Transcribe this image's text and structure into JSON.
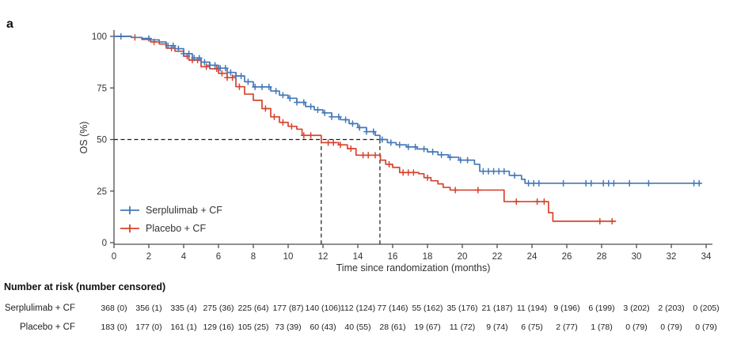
{
  "panel_label": "a",
  "colors": {
    "serplulimab": "#4478b8",
    "placebo": "#d7432e",
    "axis": "#4d4d4d",
    "dashed": "#1a1a1a",
    "text": "#333333"
  },
  "chart_data": {
    "type": "line",
    "subtype": "kaplan-meier-step",
    "title": "",
    "xlabel": "Time since randomization (months)",
    "ylabel": "OS (%)",
    "xlim": [
      0,
      35
    ],
    "ylim": [
      0,
      100
    ],
    "xticks": [
      0,
      2,
      4,
      6,
      8,
      10,
      12,
      14,
      16,
      18,
      20,
      22,
      24,
      26,
      28,
      30,
      32,
      34
    ],
    "yticks": [
      0,
      25,
      50,
      75,
      100
    ],
    "grid": false,
    "legend_position": "inside-lower-left",
    "median_markers": {
      "horizontal_y": 50,
      "vertical_x": [
        11.9,
        15.27
      ]
    },
    "series": [
      {
        "name": "Serplulimab + CF",
        "color": "#4478b8",
        "steps": [
          [
            0,
            100
          ],
          [
            1,
            99.5
          ],
          [
            1.6,
            99
          ],
          [
            2.1,
            98.3
          ],
          [
            2.6,
            97.3
          ],
          [
            3,
            95.5
          ],
          [
            3.5,
            94
          ],
          [
            4,
            91.6
          ],
          [
            4.5,
            89.5
          ],
          [
            5,
            87.5
          ],
          [
            5.5,
            86
          ],
          [
            6,
            84.6
          ],
          [
            6.5,
            82.5
          ],
          [
            7,
            80.8
          ],
          [
            7.5,
            78
          ],
          [
            8,
            75.5
          ],
          [
            9,
            73.5
          ],
          [
            9.5,
            71.5
          ],
          [
            10,
            70
          ],
          [
            10.5,
            68
          ],
          [
            11,
            66
          ],
          [
            11.5,
            64.4
          ],
          [
            12,
            62.9
          ],
          [
            12.5,
            61
          ],
          [
            13,
            59.6
          ],
          [
            13.5,
            57.7
          ],
          [
            14,
            55.8
          ],
          [
            14.5,
            53.8
          ],
          [
            15,
            52
          ],
          [
            15.27,
            50
          ],
          [
            15.7,
            48.5
          ],
          [
            16.2,
            47.4
          ],
          [
            16.8,
            46.4
          ],
          [
            17.4,
            45.4
          ],
          [
            18,
            44
          ],
          [
            18.6,
            42.6
          ],
          [
            19.2,
            41.4
          ],
          [
            19.8,
            40
          ],
          [
            20.7,
            38
          ],
          [
            21,
            34.6
          ],
          [
            22.7,
            32.6
          ],
          [
            23.4,
            30.7
          ],
          [
            23.6,
            28.8
          ],
          [
            33.7,
            28.8
          ]
        ],
        "censors": [
          0.4,
          2.0,
          3.1,
          3.4,
          3.7,
          4.0,
          4.3,
          4.6,
          4.9,
          5.2,
          5.5,
          5.8,
          6.1,
          6.4,
          6.7,
          7.0,
          7.3,
          7.7,
          8.1,
          8.5,
          8.9,
          9.3,
          9.7,
          10.1,
          10.5,
          10.9,
          11.3,
          11.7,
          12.1,
          12.5,
          12.9,
          13.3,
          13.7,
          14.1,
          14.5,
          14.9,
          15.4,
          15.9,
          16.4,
          16.9,
          17.3,
          17.8,
          18.3,
          18.8,
          19.3,
          19.9,
          20.3,
          21.2,
          21.5,
          21.8,
          22.1,
          22.4,
          23.0,
          23.8,
          24.1,
          24.4,
          25.8,
          27.1,
          27.4,
          28.1,
          28.4,
          28.7,
          29.6,
          30.7,
          33.3,
          33.6
        ]
      },
      {
        "name": "Placebo + CF",
        "color": "#d7432e",
        "steps": [
          [
            0,
            100
          ],
          [
            1,
            99.5
          ],
          [
            1.6,
            98.5
          ],
          [
            2.1,
            97.3
          ],
          [
            2.6,
            96.3
          ],
          [
            3,
            94.3
          ],
          [
            3.5,
            92.8
          ],
          [
            4,
            90.4
          ],
          [
            4.3,
            88.5
          ],
          [
            5,
            85.3
          ],
          [
            5.5,
            84.3
          ],
          [
            6,
            82.1
          ],
          [
            6.5,
            80
          ],
          [
            7,
            75.6
          ],
          [
            7.5,
            72
          ],
          [
            8,
            69
          ],
          [
            8.5,
            65
          ],
          [
            9,
            61
          ],
          [
            9.5,
            58.3
          ],
          [
            10,
            56.4
          ],
          [
            10.5,
            55
          ],
          [
            10.8,
            52
          ],
          [
            11.9,
            48.5
          ],
          [
            12.9,
            47.4
          ],
          [
            13.4,
            45.6
          ],
          [
            13.9,
            42.4
          ],
          [
            15.3,
            40
          ],
          [
            15.6,
            38
          ],
          [
            16,
            36.5
          ],
          [
            16.4,
            34
          ],
          [
            17.5,
            33.4
          ],
          [
            17.8,
            31.5
          ],
          [
            18.2,
            30
          ],
          [
            18.6,
            28.5
          ],
          [
            18.9,
            26.8
          ],
          [
            19.3,
            25.5
          ],
          [
            22.4,
            19.9
          ],
          [
            24.95,
            14.5
          ],
          [
            25.2,
            10.4
          ],
          [
            28.8,
            10.4
          ]
        ],
        "censors": [
          1.2,
          2.3,
          3.3,
          4.2,
          4.5,
          4.8,
          5.3,
          5.9,
          6.2,
          6.5,
          6.8,
          7.2,
          8.7,
          9.2,
          9.7,
          10.2,
          10.9,
          11.3,
          12.3,
          12.6,
          13.0,
          13.6,
          14.3,
          14.6,
          15.0,
          15.8,
          16.6,
          16.9,
          17.2,
          18.0,
          19.6,
          20.9,
          23.1,
          24.3,
          24.7,
          27.9,
          28.6
        ]
      }
    ]
  },
  "risk_table": {
    "title": "Number at risk (number censored)",
    "time_points": [
      0,
      2,
      4,
      6,
      8,
      10,
      12,
      14,
      16,
      18,
      20,
      22,
      24,
      26,
      28,
      30,
      32,
      34
    ],
    "rows": [
      {
        "label": "Serplulimab + CF",
        "values": [
          "368 (0)",
          "356 (1)",
          "335 (4)",
          "275 (36)",
          "225 (64)",
          "177 (87)",
          "140 (106)",
          "112 (124)",
          "77 (146)",
          "55 (162)",
          "35 (176)",
          "21 (187)",
          "11 (194)",
          "9 (196)",
          "6 (199)",
          "3 (202)",
          "2 (203)",
          "0 (205)"
        ]
      },
      {
        "label": "Placebo + CF",
        "values": [
          "183 (0)",
          "177 (0)",
          "161 (1)",
          "129 (16)",
          "105 (25)",
          "73 (39)",
          "60 (43)",
          "40 (55)",
          "28 (61)",
          "19 (67)",
          "11 (72)",
          "9 (74)",
          "6 (75)",
          "2 (77)",
          "1 (78)",
          "0 (79)",
          "0 (79)",
          "0 (79)"
        ]
      }
    ]
  }
}
